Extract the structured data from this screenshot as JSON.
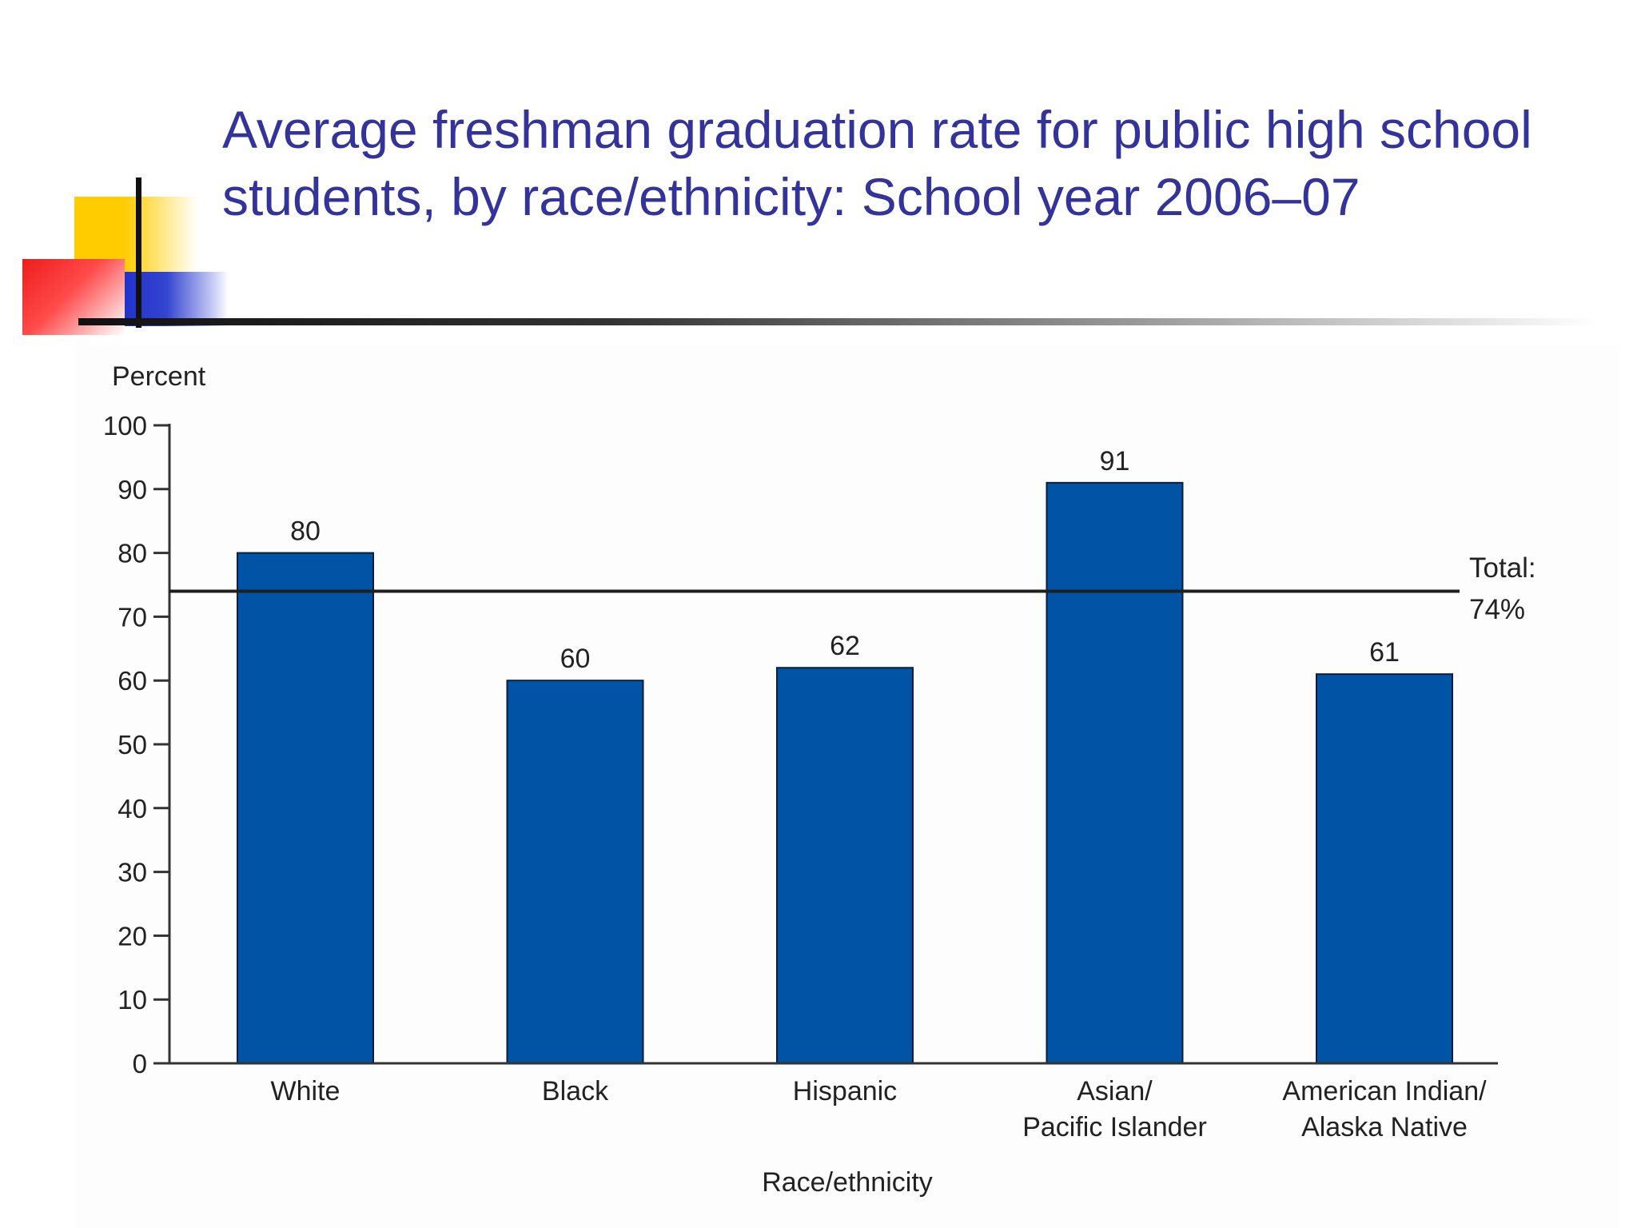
{
  "title": "Average freshman graduation rate for public high school\nstudents, by race/ethnicity: School year 2006–07",
  "colors": {
    "title": "#333399",
    "bar": "#0053a5",
    "bar_border": "#0b1d3a",
    "reference_line": "#1f1f1f",
    "axis": "#333333"
  },
  "chart_data": {
    "type": "bar",
    "title": "Average freshman graduation rate for public high school students, by race/ethnicity: School year 2006–07",
    "ylabel": "Percent",
    "xlabel": "Race/ethnicity",
    "ylim": [
      0,
      100
    ],
    "yticks": [
      0,
      10,
      20,
      30,
      40,
      50,
      60,
      70,
      80,
      90,
      100
    ],
    "categories": [
      [
        "White"
      ],
      [
        "Black"
      ],
      [
        "Hispanic"
      ],
      [
        "Asian/",
        "Pacific Islander"
      ],
      [
        "American Indian/",
        "Alaska Native"
      ]
    ],
    "values": [
      80,
      60,
      62,
      91,
      61
    ],
    "value_labels": [
      "80",
      "60",
      "62",
      "91",
      "61"
    ],
    "reference_line": {
      "value": 74,
      "label_lines": [
        "Total:",
        "74%"
      ]
    },
    "grid": false,
    "legend": "none"
  }
}
